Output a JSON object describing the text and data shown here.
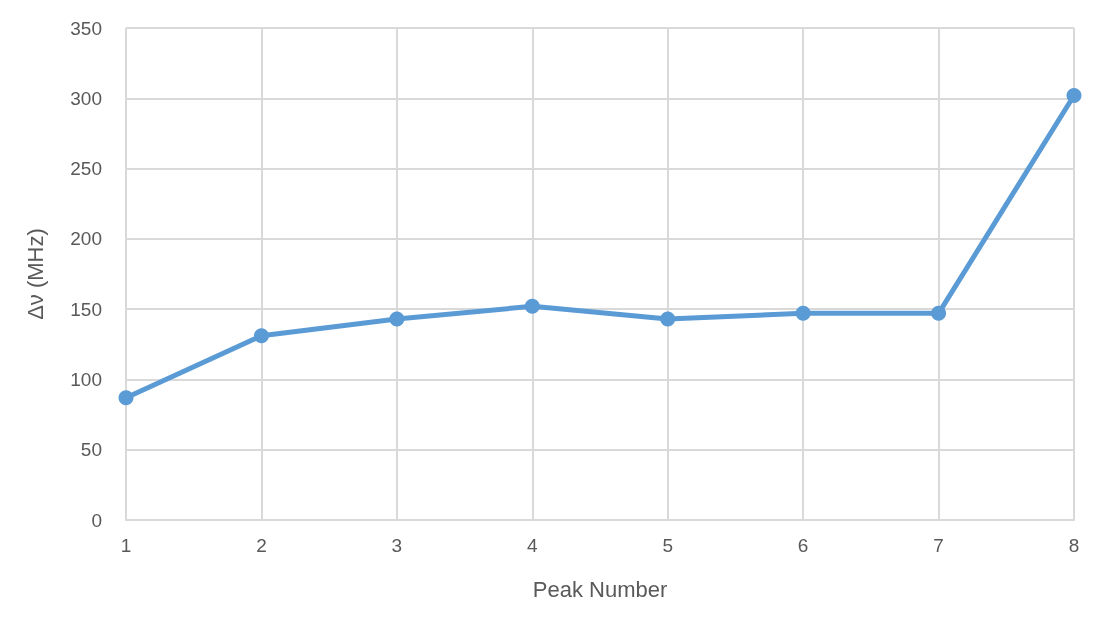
{
  "chart_data": {
    "type": "line",
    "xlabel": "Peak Number",
    "ylabel": "Δν (MHz)",
    "x": [
      1,
      2,
      3,
      4,
      5,
      6,
      7,
      8
    ],
    "series": [
      {
        "color": "#5b9bd5",
        "values": [
          87,
          131,
          143,
          152,
          143,
          147,
          147,
          302
        ]
      }
    ],
    "xlim": [
      1,
      8
    ],
    "xticks": [
      1,
      2,
      3,
      4,
      5,
      6,
      7,
      8
    ],
    "ylim": [
      0,
      350
    ],
    "yticks": [
      0,
      50,
      100,
      150,
      200,
      250,
      300,
      350
    ],
    "grid": true,
    "marker": "circle",
    "line_style": "solid"
  }
}
